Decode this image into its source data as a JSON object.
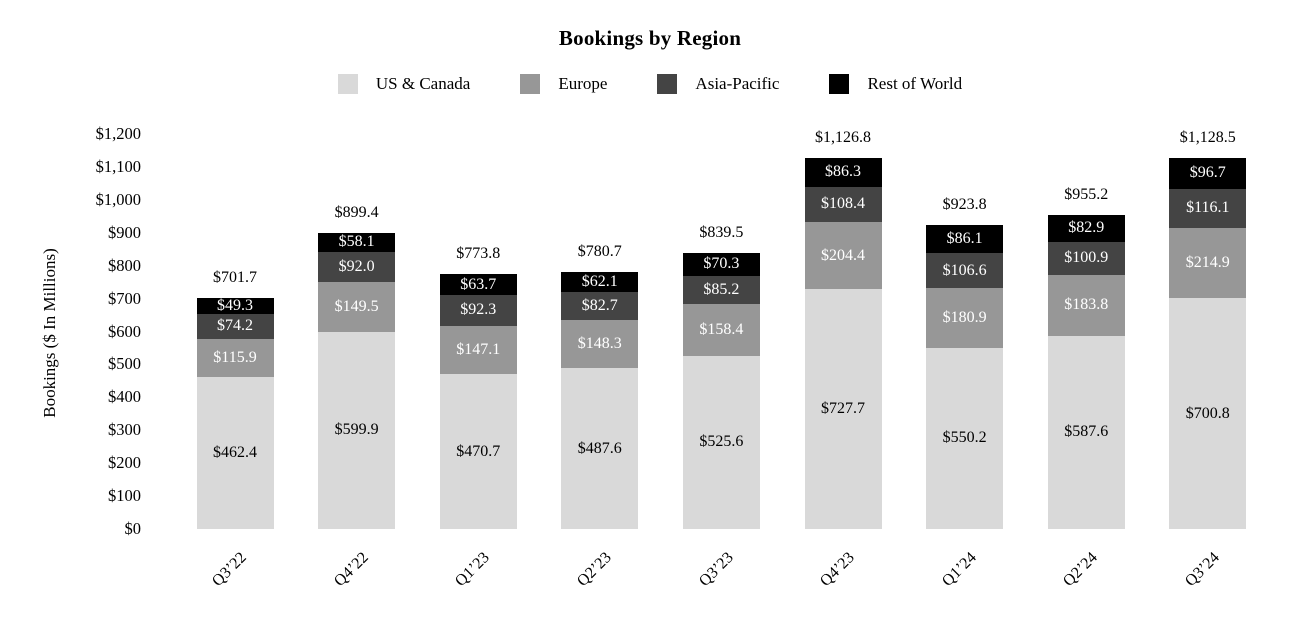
{
  "chart_data": {
    "type": "bar",
    "stacked": true,
    "title": "Bookings by Region",
    "ylabel": "Bookings ($ In Millions)",
    "xlabel": "",
    "ylim": [
      0,
      1200
    ],
    "y_tick_interval": 100,
    "y_tick_labels": [
      "$0",
      "$100",
      "$200",
      "$300",
      "$400",
      "$500",
      "$600",
      "$700",
      "$800",
      "$900",
      "$1,000",
      "$1,100",
      "$1,200"
    ],
    "grid": false,
    "legend_position": "top",
    "categories": [
      "Q3’22",
      "Q4’22",
      "Q1’23",
      "Q2’23",
      "Q3’23",
      "Q4’23",
      "Q1’24",
      "Q2’24",
      "Q3’24"
    ],
    "series": [
      {
        "name": "US & Canada",
        "color": "#d9d9d9",
        "label_color": "#000000",
        "values": [
          462.4,
          599.9,
          470.7,
          487.6,
          525.6,
          727.7,
          550.2,
          587.6,
          700.8
        ],
        "labels": [
          "$462.4",
          "$599.9",
          "$470.7",
          "$487.6",
          "$525.6",
          "$727.7",
          "$550.2",
          "$587.6",
          "$700.8"
        ]
      },
      {
        "name": "Europe",
        "color": "#979797",
        "label_color": "#ffffff",
        "values": [
          115.9,
          149.5,
          147.1,
          148.3,
          158.4,
          204.4,
          180.9,
          183.8,
          214.9
        ],
        "labels": [
          "$115.9",
          "$149.5",
          "$147.1",
          "$148.3",
          "$158.4",
          "$204.4",
          "$180.9",
          "$183.8",
          "$214.9"
        ]
      },
      {
        "name": "Asia-Pacific",
        "color": "#444444",
        "label_color": "#ffffff",
        "values": [
          74.2,
          92.0,
          92.3,
          82.7,
          85.2,
          108.4,
          106.6,
          100.9,
          116.1
        ],
        "labels": [
          "$74.2",
          "$92.0",
          "$92.3",
          "$82.7",
          "$85.2",
          "$108.4",
          "$106.6",
          "$100.9",
          "$116.1"
        ]
      },
      {
        "name": "Rest of World",
        "color": "#000000",
        "label_color": "#ffffff",
        "values": [
          49.3,
          58.1,
          63.7,
          62.1,
          70.3,
          86.3,
          86.1,
          82.9,
          96.7
        ],
        "labels": [
          "$49.3",
          "$58.1",
          "$63.7",
          "$62.1",
          "$70.3",
          "$86.3",
          "$86.1",
          "$82.9",
          "$96.7"
        ]
      }
    ],
    "totals": [
      701.7,
      899.4,
      773.8,
      780.7,
      839.5,
      1126.8,
      923.8,
      955.2,
      1128.5
    ],
    "total_labels": [
      "$701.7",
      "$899.4",
      "$773.8",
      "$780.7",
      "$839.5",
      "$1,126.8",
      "$923.8",
      "$955.2",
      "$1,128.5"
    ]
  }
}
